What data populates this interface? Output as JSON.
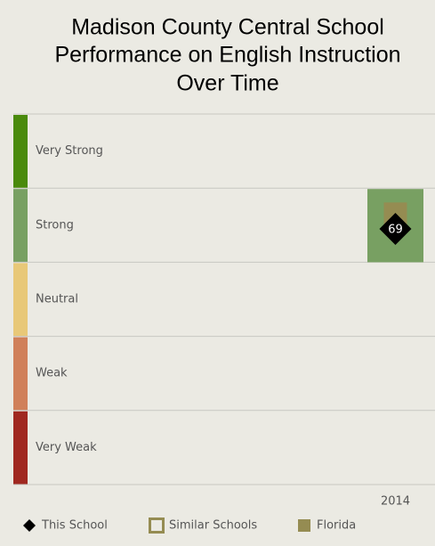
{
  "chart_data": {
    "type": "band-chart",
    "title": [
      "Madison County Central School",
      "Performance on English Instruction",
      "Over Time"
    ],
    "bands": [
      {
        "label": "Very Strong",
        "color": "#4a8a0c"
      },
      {
        "label": "Strong",
        "color": "#78a062"
      },
      {
        "label": "Neutral",
        "color": "#e8c878"
      },
      {
        "label": "Weak",
        "color": "#d0805a"
      },
      {
        "label": "Very Weak",
        "color": "#a02820"
      }
    ],
    "ylim": [
      0,
      100
    ],
    "categories": [
      "2014"
    ],
    "series": [
      {
        "name": "This School",
        "color": "#000000",
        "values": [
          69
        ]
      },
      {
        "name": "Similar Schools",
        "color": "#958c52",
        "values": [
          null
        ]
      },
      {
        "name": "Florida",
        "color": "#958c52",
        "values": [
          73
        ]
      }
    ]
  }
}
